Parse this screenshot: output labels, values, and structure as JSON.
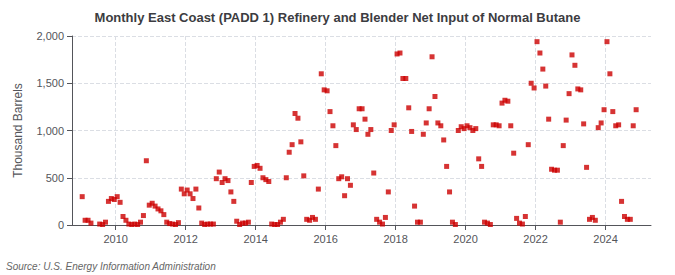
{
  "chart_data": {
    "type": "scatter",
    "title": "Monthly East Coast (PADD 1) Refinery and Blender Net Input of Normal Butane",
    "ylabel": "Thousand Barrels",
    "annotations": [
      "Source: U.S. Energy Information Administration"
    ],
    "color": "#cc0000",
    "marker": "square",
    "grid": true,
    "xlim": [
      2008.75,
      2025.3
    ],
    "xticks": [
      2010,
      2012,
      2014,
      2016,
      2018,
      2020,
      2022,
      2024
    ],
    "ylim": [
      0,
      2000
    ],
    "yticks": [
      0,
      500,
      {
        "value": 1000,
        "label": "1,000"
      },
      {
        "value": 1500,
        "label": "1,500"
      },
      {
        "value": 2000,
        "label": "2,000"
      }
    ],
    "x": [
      2009.0416666666667,
      2009.125,
      2009.2083333333333,
      2009.2916666666667,
      2009.5416666666667,
      2009.625,
      2009.7083333333333,
      2009.7916666666667,
      2009.875,
      2009.9583333333333,
      2010.0416666666667,
      2010.125,
      2010.2083333333333,
      2010.2916666666667,
      2010.375,
      2010.4583333333333,
      2010.5416666666667,
      2010.625,
      2010.7083333333333,
      2010.7916666666667,
      2010.875,
      2010.9583333333333,
      2011.0416666666667,
      2011.125,
      2011.2083333333333,
      2011.2916666666667,
      2011.375,
      2011.4583333333333,
      2011.5416666666667,
      2011.625,
      2011.7083333333333,
      2011.7916666666667,
      2011.875,
      2011.9583333333333,
      2012.0416666666667,
      2012.125,
      2012.2083333333333,
      2012.2916666666667,
      2012.375,
      2012.4583333333333,
      2012.5416666666667,
      2012.625,
      2012.7083333333333,
      2012.7916666666667,
      2012.875,
      2012.9583333333333,
      2013.0416666666667,
      2013.125,
      2013.2083333333333,
      2013.2916666666667,
      2013.375,
      2013.4583333333333,
      2013.5416666666667,
      2013.625,
      2013.7083333333333,
      2013.7916666666667,
      2013.875,
      2013.9583333333333,
      2014.0416666666667,
      2014.125,
      2014.2083333333333,
      2014.2916666666667,
      2014.375,
      2014.4583333333333,
      2014.5416666666667,
      2014.625,
      2014.7083333333333,
      2014.7916666666667,
      2014.875,
      2014.9583333333333,
      2015.0416666666667,
      2015.125,
      2015.2083333333333,
      2015.2916666666667,
      2015.375,
      2015.4583333333333,
      2015.5416666666667,
      2015.625,
      2015.7083333333333,
      2015.7916666666667,
      2015.875,
      2015.9583333333333,
      2016.0416666666667,
      2016.125,
      2016.2083333333333,
      2016.2916666666667,
      2016.375,
      2016.4583333333333,
      2016.5416666666667,
      2016.625,
      2016.7083333333333,
      2016.7916666666667,
      2016.875,
      2016.9583333333333,
      2017.0416666666667,
      2017.125,
      2017.2083333333333,
      2017.2916666666667,
      2017.375,
      2017.4583333333333,
      2017.5416666666667,
      2017.625,
      2017.7083333333333,
      2017.7916666666667,
      2017.875,
      2017.9583333333333,
      2018.0416666666667,
      2018.125,
      2018.2083333333333,
      2018.2916666666667,
      2018.375,
      2018.4583333333333,
      2018.5416666666667,
      2018.625,
      2018.7083333333333,
      2018.7916666666667,
      2018.875,
      2018.9583333333333,
      2019.0416666666667,
      2019.125,
      2019.2083333333333,
      2019.2916666666667,
      2019.375,
      2019.4583333333333,
      2019.5416666666667,
      2019.625,
      2019.7083333333333,
      2019.7916666666667,
      2019.875,
      2019.9583333333333,
      2020.0416666666667,
      2020.125,
      2020.2083333333333,
      2020.2916666666667,
      2020.375,
      2020.4583333333333,
      2020.5416666666667,
      2020.625,
      2020.7083333333333,
      2020.7916666666667,
      2020.875,
      2020.9583333333333,
      2021.0416666666667,
      2021.125,
      2021.2083333333333,
      2021.2916666666667,
      2021.375,
      2021.4583333333333,
      2021.5416666666667,
      2021.625,
      2021.7083333333333,
      2021.7916666666667,
      2021.875,
      2021.9583333333333,
      2022.0416666666667,
      2022.125,
      2022.2083333333333,
      2022.2916666666667,
      2022.375,
      2022.4583333333333,
      2022.5416666666667,
      2022.625,
      2022.7083333333333,
      2022.7916666666667,
      2022.875,
      2022.9583333333333,
      2023.0416666666667,
      2023.125,
      2023.2083333333333,
      2023.2916666666667,
      2023.375,
      2023.4583333333333,
      2023.5416666666667,
      2023.625,
      2023.7083333333333,
      2023.7916666666667,
      2023.875,
      2023.9583333333333,
      2024.0416666666667,
      2024.125,
      2024.2083333333333,
      2024.2916666666667,
      2024.375,
      2024.4583333333333,
      2024.5416666666667,
      2024.625,
      2024.7083333333333,
      2024.7916666666667,
      2024.875
    ],
    "values": [
      300,
      50,
      50,
      20,
      10,
      5,
      30,
      250,
      280,
      270,
      300,
      240,
      90,
      50,
      10,
      5,
      10,
      5,
      30,
      100,
      680,
      210,
      230,
      200,
      170,
      150,
      110,
      30,
      15,
      10,
      5,
      25,
      380,
      330,
      370,
      330,
      280,
      380,
      180,
      20,
      5,
      10,
      10,
      10,
      490,
      560,
      450,
      490,
      470,
      350,
      250,
      40,
      5,
      20,
      20,
      30,
      450,
      620,
      630,
      600,
      500,
      480,
      460,
      10,
      5,
      5,
      30,
      60,
      500,
      770,
      850,
      1180,
      1130,
      880,
      520,
      60,
      50,
      80,
      60,
      380,
      1600,
      1430,
      1420,
      1200,
      1050,
      840,
      490,
      510,
      310,
      490,
      420,
      1060,
      1010,
      1230,
      1230,
      1120,
      960,
      1010,
      550,
      60,
      30,
      10,
      80,
      350,
      1000,
      1060,
      1810,
      1820,
      1550,
      1550,
      1240,
      990,
      200,
      30,
      30,
      960,
      1080,
      1230,
      1780,
      1360,
      1080,
      1050,
      900,
      620,
      350,
      30,
      5,
      1000,
      1040,
      1020,
      1050,
      1030,
      1000,
      1020,
      700,
      620,
      30,
      20,
      5,
      1060,
      1060,
      1050,
      1290,
      1320,
      1310,
      1050,
      760,
      70,
      20,
      10,
      90,
      850,
      1500,
      1450,
      1940,
      1820,
      1650,
      1470,
      1120,
      590,
      580,
      580,
      30,
      840,
      1110,
      1390,
      1800,
      1690,
      1440,
      1430,
      1070,
      610,
      60,
      80,
      50,
      1030,
      1080,
      1220,
      1940,
      1600,
      1200,
      1050,
      1060,
      250,
      90,
      60,
      60,
      1050,
      1220
    ]
  }
}
